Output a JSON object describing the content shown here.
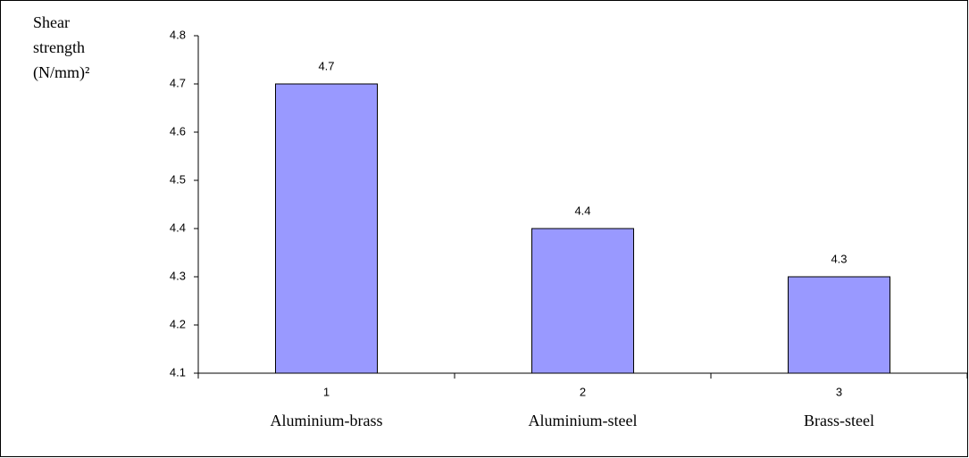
{
  "chart_data": {
    "type": "bar",
    "ylabel": [
      "Shear",
      "strength",
      "(N/mm)²"
    ],
    "categories": [
      "1",
      "2",
      "3"
    ],
    "category_names": [
      "Aluminium-brass",
      "Aluminium-steel",
      "Brass-steel"
    ],
    "values": [
      4.7,
      4.4,
      4.3
    ],
    "color": "#9999ff",
    "ylim": [
      4.1,
      4.8
    ],
    "yticks": [
      4.1,
      4.2,
      4.3,
      4.4,
      4.5,
      4.6,
      4.7,
      4.8
    ],
    "grid": false
  }
}
